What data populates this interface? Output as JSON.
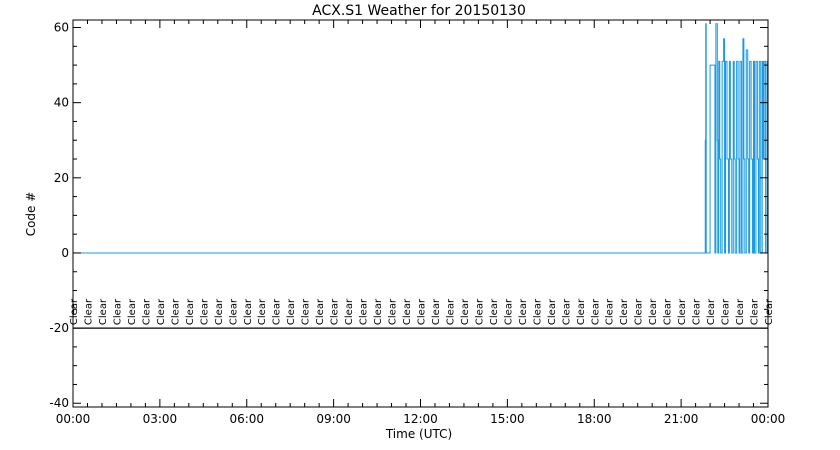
{
  "chart_data": {
    "type": "line",
    "title": "ACX.S1 Weather for 20150130",
    "xlabel": "Time (UTC)",
    "ylabel": "Code #",
    "xlim": [
      "00:00",
      "24:00"
    ],
    "ylim": [
      -41,
      62
    ],
    "x_ticks": [
      "00:00",
      "03:00",
      "06:00",
      "09:00",
      "12:00",
      "15:00",
      "18:00",
      "21:00",
      "00:00"
    ],
    "y_ticks": [
      60,
      40,
      20,
      0,
      -20,
      -40
    ],
    "series_color": "#1a9be0",
    "reference_line_y": -20,
    "grid": false,
    "condition_label": "Clear",
    "condition_label_times": [
      "00:00",
      "00:30",
      "01:00",
      "01:30",
      "02:00",
      "02:30",
      "03:00",
      "03:30",
      "04:00",
      "04:30",
      "05:00",
      "05:30",
      "06:00",
      "06:30",
      "07:00",
      "07:30",
      "08:00",
      "08:30",
      "09:00",
      "09:30",
      "10:00",
      "10:30",
      "11:00",
      "11:30",
      "12:00",
      "12:30",
      "13:00",
      "13:30",
      "14:00",
      "14:30",
      "15:00",
      "15:30",
      "16:00",
      "16:30",
      "17:00",
      "17:30",
      "18:00",
      "18:30",
      "19:00",
      "19:30",
      "20:00",
      "20:30",
      "21:00",
      "21:30",
      "22:00",
      "22:30",
      "23:00",
      "23:30",
      "24:00"
    ],
    "series": [
      {
        "x": [
          "00:00",
          "21:50",
          "21:50",
          "21:51",
          "21:51",
          "21:52",
          "21:52",
          "22:00",
          "22:00",
          "22:10",
          "22:10",
          "22:12",
          "22:12",
          "22:15",
          "22:15",
          "22:16",
          "22:16",
          "22:18",
          "22:18",
          "22:20",
          "22:20",
          "22:22",
          "22:22",
          "22:25",
          "22:25",
          "22:28",
          "22:28",
          "22:30",
          "22:30",
          "22:32",
          "22:32",
          "22:35",
          "22:35",
          "22:38",
          "22:38",
          "22:40",
          "22:40",
          "22:42",
          "22:42",
          "22:45",
          "22:45",
          "22:48",
          "22:48",
          "22:50",
          "22:50",
          "22:52",
          "22:52",
          "22:55",
          "22:55",
          "22:58",
          "22:58",
          "23:00",
          "23:00",
          "23:02",
          "23:02",
          "23:05",
          "23:05",
          "23:08",
          "23:08",
          "23:10",
          "23:10",
          "23:12",
          "23:12",
          "23:15",
          "23:15",
          "23:18",
          "23:18",
          "23:20",
          "23:20",
          "23:22",
          "23:22",
          "23:25",
          "23:25",
          "23:28",
          "23:28",
          "23:30",
          "23:30",
          "23:32",
          "23:32",
          "23:35",
          "23:35",
          "23:38",
          "23:38",
          "23:40",
          "23:40",
          "23:42",
          "23:42",
          "23:45",
          "23:45",
          "23:48",
          "23:48",
          "23:50",
          "23:50",
          "23:52",
          "23:52",
          "23:55",
          "23:55",
          "23:58",
          "23:58",
          "24:00"
        ],
        "y": [
          0,
          0,
          30,
          30,
          61,
          61,
          0,
          0,
          50,
          50,
          0,
          0,
          61,
          61,
          30,
          30,
          0,
          0,
          51,
          51,
          25,
          25,
          0,
          0,
          51,
          51,
          57,
          57,
          0,
          0,
          51,
          51,
          25,
          25,
          0,
          0,
          51,
          51,
          25,
          25,
          0,
          0,
          51,
          51,
          25,
          25,
          0,
          0,
          51,
          51,
          25,
          25,
          0,
          0,
          51,
          51,
          0,
          0,
          57,
          57,
          25,
          25,
          0,
          0,
          54,
          54,
          25,
          25,
          0,
          0,
          51,
          51,
          25,
          25,
          0,
          0,
          51,
          51,
          0,
          0,
          51,
          51,
          25,
          25,
          0,
          0,
          51,
          51,
          0,
          0,
          51,
          51,
          25,
          25,
          51,
          51,
          0,
          0,
          51,
          51
        ]
      }
    ]
  }
}
